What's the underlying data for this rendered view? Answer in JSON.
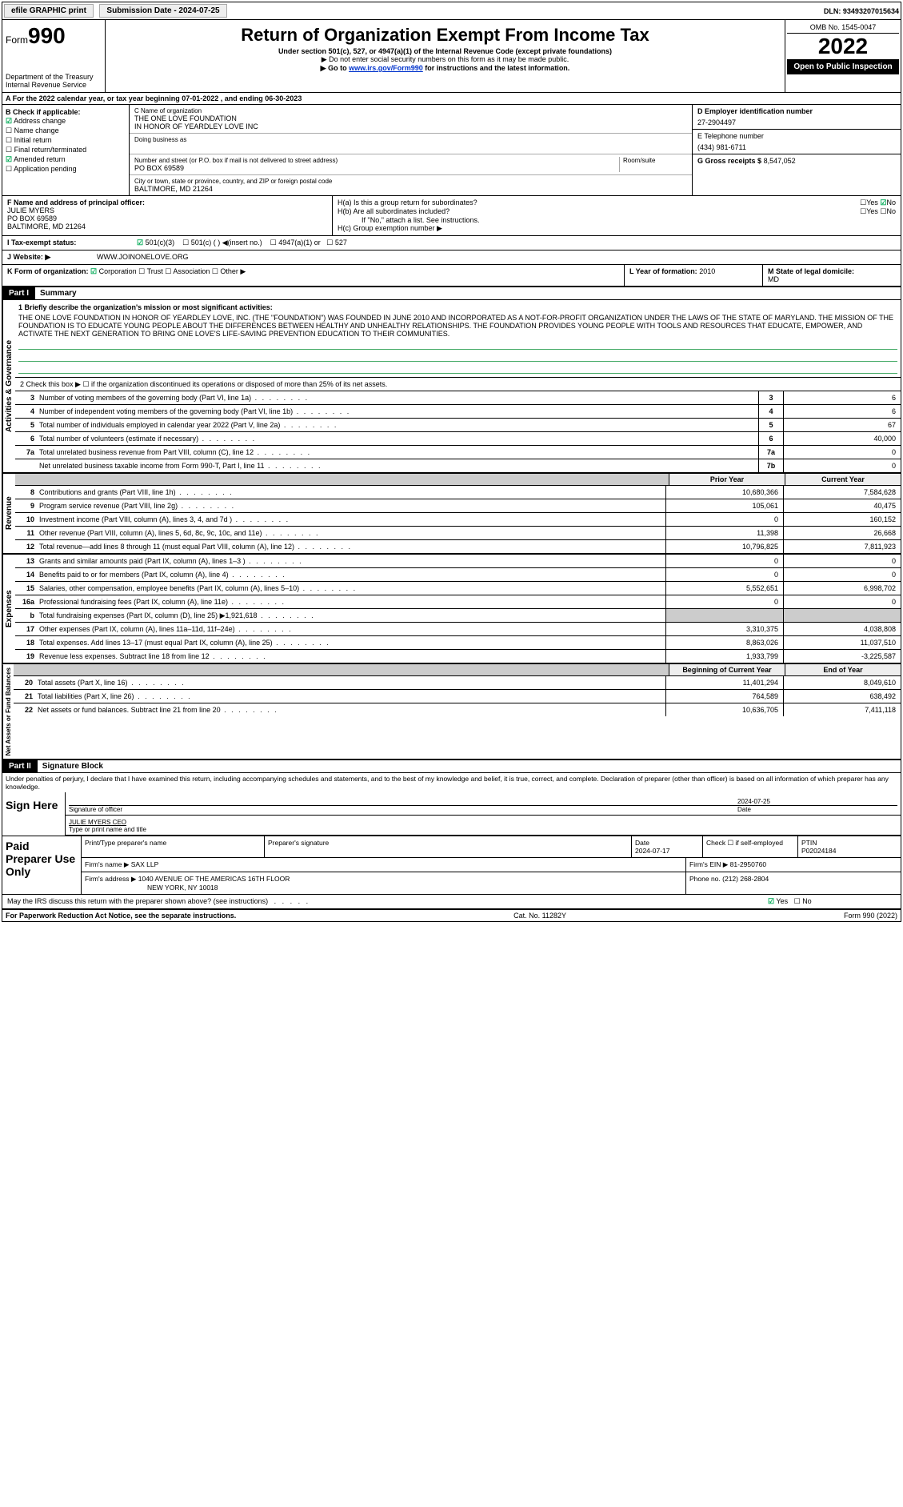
{
  "topbar": {
    "efile": "efile GRAPHIC print",
    "submission": "Submission Date - 2024-07-25",
    "dln": "DLN: 93493207015634"
  },
  "header": {
    "form_prefix": "Form",
    "form_number": "990",
    "title": "Return of Organization Exempt From Income Tax",
    "subtitle": "Under section 501(c), 527, or 4947(a)(1) of the Internal Revenue Code (except private foundations)",
    "sub2": "▶ Do not enter social security numbers on this form as it may be made public.",
    "sub3_prefix": "▶ Go to ",
    "sub3_link": "www.irs.gov/Form990",
    "sub3_suffix": " for instructions and the latest information.",
    "dept": "Department of the Treasury",
    "dept2": "Internal Revenue Service",
    "omb": "OMB No. 1545-0047",
    "year": "2022",
    "open_public": "Open to Public Inspection"
  },
  "rowA": {
    "text": "A For the 2022 calendar year, or tax year beginning 07-01-2022   , and ending 06-30-2023"
  },
  "colB": {
    "label": "B Check if applicable:",
    "addr_change": "Address change",
    "name_change": "Name change",
    "initial_return": "Initial return",
    "final_return": "Final return/terminated",
    "amended": "Amended return",
    "app_pending": "Application pending"
  },
  "colC": {
    "name_label": "C Name of organization",
    "name": "THE ONE LOVE FOUNDATION",
    "name2": "IN HONOR OF YEARDLEY LOVE INC",
    "dba_label": "Doing business as",
    "street_label": "Number and street (or P.O. box if mail is not delivered to street address)",
    "suite_label": "Room/suite",
    "street": "PO BOX 69589",
    "city_label": "City or town, state or province, country, and ZIP or foreign postal code",
    "city": "BALTIMORE, MD  21264"
  },
  "colD": {
    "ein_label": "D Employer identification number",
    "ein": "27-2904497",
    "phone_label": "E Telephone number",
    "phone": "(434) 981-6711",
    "gross_label": "G Gross receipts $",
    "gross": "8,547,052"
  },
  "rowF": {
    "label": "F  Name and address of principal officer:",
    "name": "JULIE MYERS",
    "addr1": "PO BOX 69589",
    "addr2": "BALTIMORE, MD  21264"
  },
  "rowH": {
    "h_a": "H(a)  Is this a group return for subordinates?",
    "h_b": "H(b)  Are all subordinates included?",
    "h_b_note": "If \"No,\" attach a list. See instructions.",
    "h_c": "H(c)  Group exemption number ▶",
    "yes": "Yes",
    "no": "No"
  },
  "rowI": {
    "label": "I    Tax-exempt status:",
    "opt1": "501(c)(3)",
    "opt2": "501(c) (  ) ◀(insert no.)",
    "opt3": "4947(a)(1) or",
    "opt4": "527"
  },
  "rowJ": {
    "label": "J   Website: ▶",
    "val": "WWW.JOINONELOVE.ORG"
  },
  "rowK": {
    "label": "K Form of organization:",
    "corp": "Corporation",
    "trust": "Trust",
    "assoc": "Association",
    "other": "Other ▶"
  },
  "rowL": {
    "label": "L Year of formation:",
    "val": "2010",
    "m_label": "M State of legal domicile:",
    "m_val": "MD"
  },
  "part1": {
    "part_label": "Part I",
    "title": "Summary",
    "sidebar1": "Activities & Governance",
    "sidebar2": "Revenue",
    "sidebar3": "Expenses",
    "sidebar4": "Net Assets or Fund Balances",
    "line1_label": "1   Briefly describe the organization's mission or most significant activities:",
    "mission": "THE ONE LOVE FOUNDATION IN HONOR OF YEARDLEY LOVE, INC. (THE \"FOUNDATION\") WAS FOUNDED IN JUNE 2010 AND INCORPORATED AS A NOT-FOR-PROFIT ORGANIZATION UNDER THE LAWS OF THE STATE OF MARYLAND. THE MISSION OF THE FOUNDATION IS TO EDUCATE YOUNG PEOPLE ABOUT THE DIFFERENCES BETWEEN HEALTHY AND UNHEALTHY RELATIONSHIPS. THE FOUNDATION PROVIDES YOUNG PEOPLE WITH TOOLS AND RESOURCES THAT EDUCATE, EMPOWER, AND ACTIVATE THE NEXT GENERATION TO BRING ONE LOVE'S LIFE-SAVING PREVENTION EDUCATION TO THEIR COMMUNITIES.",
    "line2": "2   Check this box ▶ ☐ if the organization discontinued its operations or disposed of more than 25% of its net assets.",
    "col_prior": "Prior Year",
    "col_current": "Current Year",
    "col_begin": "Beginning of Current Year",
    "col_end": "End of Year",
    "rows_gov": [
      {
        "n": "3",
        "t": "Number of voting members of the governing body (Part VI, line 1a)",
        "c": "3",
        "v": "6"
      },
      {
        "n": "4",
        "t": "Number of independent voting members of the governing body (Part VI, line 1b)",
        "c": "4",
        "v": "6"
      },
      {
        "n": "5",
        "t": "Total number of individuals employed in calendar year 2022 (Part V, line 2a)",
        "c": "5",
        "v": "67"
      },
      {
        "n": "6",
        "t": "Total number of volunteers (estimate if necessary)",
        "c": "6",
        "v": "40,000"
      },
      {
        "n": "7a",
        "t": "Total unrelated business revenue from Part VIII, column (C), line 12",
        "c": "7a",
        "v": "0"
      },
      {
        "n": "",
        "t": "Net unrelated business taxable income from Form 990-T, Part I, line 11",
        "c": "7b",
        "v": "0"
      }
    ],
    "rows_rev": [
      {
        "n": "8",
        "t": "Contributions and grants (Part VIII, line 1h)",
        "p": "10,680,366",
        "c": "7,584,628"
      },
      {
        "n": "9",
        "t": "Program service revenue (Part VIII, line 2g)",
        "p": "105,061",
        "c": "40,475"
      },
      {
        "n": "10",
        "t": "Investment income (Part VIII, column (A), lines 3, 4, and 7d )",
        "p": "0",
        "c": "160,152"
      },
      {
        "n": "11",
        "t": "Other revenue (Part VIII, column (A), lines 5, 6d, 8c, 9c, 10c, and 11e)",
        "p": "11,398",
        "c": "26,668"
      },
      {
        "n": "12",
        "t": "Total revenue—add lines 8 through 11 (must equal Part VIII, column (A), line 12)",
        "p": "10,796,825",
        "c": "7,811,923"
      }
    ],
    "rows_exp": [
      {
        "n": "13",
        "t": "Grants and similar amounts paid (Part IX, column (A), lines 1–3 )",
        "p": "0",
        "c": "0"
      },
      {
        "n": "14",
        "t": "Benefits paid to or for members (Part IX, column (A), line 4)",
        "p": "0",
        "c": "0"
      },
      {
        "n": "15",
        "t": "Salaries, other compensation, employee benefits (Part IX, column (A), lines 5–10)",
        "p": "5,552,651",
        "c": "6,998,702"
      },
      {
        "n": "16a",
        "t": "Professional fundraising fees (Part IX, column (A), line 11e)",
        "p": "0",
        "c": "0"
      },
      {
        "n": "b",
        "t": "Total fundraising expenses (Part IX, column (D), line 25) ▶1,921,618",
        "p": "grey",
        "c": "grey"
      },
      {
        "n": "17",
        "t": "Other expenses (Part IX, column (A), lines 11a–11d, 11f–24e)",
        "p": "3,310,375",
        "c": "4,038,808"
      },
      {
        "n": "18",
        "t": "Total expenses. Add lines 13–17 (must equal Part IX, column (A), line 25)",
        "p": "8,863,026",
        "c": "11,037,510"
      },
      {
        "n": "19",
        "t": "Revenue less expenses. Subtract line 18 from line 12",
        "p": "1,933,799",
        "c": "-3,225,587"
      }
    ],
    "rows_net": [
      {
        "n": "20",
        "t": "Total assets (Part X, line 16)",
        "p": "11,401,294",
        "c": "8,049,610"
      },
      {
        "n": "21",
        "t": "Total liabilities (Part X, line 26)",
        "p": "764,589",
        "c": "638,492"
      },
      {
        "n": "22",
        "t": "Net assets or fund balances. Subtract line 21 from line 20",
        "p": "10,636,705",
        "c": "7,411,118"
      }
    ]
  },
  "part2": {
    "part_label": "Part II",
    "title": "Signature Block",
    "penalties": "Under penalties of perjury, I declare that I have examined this return, including accompanying schedules and statements, and to the best of my knowledge and belief, it is true, correct, and complete. Declaration of preparer (other than officer) is based on all information of which preparer has any knowledge.",
    "sign_here": "Sign Here",
    "sig_label": "Signature of officer",
    "date_label": "Date",
    "date_val": "2024-07-25",
    "name_label": "Type or print name and title",
    "name_val": "JULIE MYERS CEO",
    "paid_prep": "Paid Preparer Use Only",
    "prep_name_label": "Print/Type preparer's name",
    "prep_sig_label": "Preparer's signature",
    "prep_date_label": "Date",
    "prep_date": "2024-07-17",
    "self_emp": "Check ☐ if self-employed",
    "ptin_label": "PTIN",
    "ptin": "P02024184",
    "firm_name_label": "Firm's name    ▶",
    "firm_name": "SAX LLP",
    "firm_ein_label": "Firm's EIN ▶",
    "firm_ein": "81-2950760",
    "firm_addr_label": "Firm's address ▶",
    "firm_addr": "1040 AVENUE OF THE AMERICAS 16TH FLOOR",
    "firm_addr2": "NEW YORK, NY  10018",
    "phone_label": "Phone no.",
    "phone": "(212) 268-2804",
    "discuss": "May the IRS discuss this return with the preparer shown above? (see instructions)",
    "yes": "Yes",
    "no": "No"
  },
  "footer": {
    "paperwork": "For Paperwork Reduction Act Notice, see the separate instructions.",
    "catno": "Cat. No. 11282Y",
    "formno": "Form 990 (2022)"
  }
}
